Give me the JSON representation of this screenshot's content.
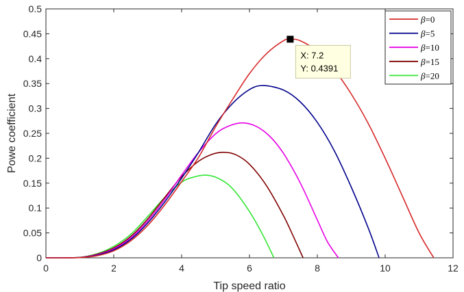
{
  "chart_data": {
    "type": "line",
    "xlabel": "Tip speed ratio",
    "ylabel": "Powe coefficient",
    "xlim": [
      0,
      12
    ],
    "ylim": [
      0,
      0.5
    ],
    "xticks": [
      0,
      2,
      4,
      6,
      8,
      10,
      12
    ],
    "yticks": [
      0,
      0.05,
      0.1,
      0.15,
      0.2,
      0.25,
      0.3,
      0.35,
      0.4,
      0.45,
      0.5
    ],
    "xtick_labels": [
      "0",
      "2",
      "4",
      "6",
      "8",
      "10",
      "12"
    ],
    "ytick_labels": [
      "0",
      "0.05",
      "0.1",
      "0.15",
      "0.2",
      "0.25",
      "0.3",
      "0.35",
      "0.4",
      "0.45",
      "0.5"
    ],
    "grid": false,
    "legend_position": "top-right",
    "series": [
      {
        "name": "=0",
        "beta": 0,
        "color": "#d62728",
        "x": [
          0,
          0.5,
          1,
          1.5,
          2,
          2.5,
          3,
          3.5,
          4,
          4.5,
          5,
          5.5,
          6,
          6.5,
          7,
          7.2,
          7.5,
          8,
          8.5,
          9,
          9.5,
          10,
          10.5,
          11,
          11.43
        ],
        "y": [
          0,
          0,
          0.0005,
          0.004,
          0.014,
          0.034,
          0.065,
          0.106,
          0.153,
          0.202,
          0.263,
          0.318,
          0.37,
          0.41,
          0.436,
          0.4391,
          0.436,
          0.415,
          0.378,
          0.329,
          0.27,
          0.2,
          0.125,
          0.05,
          0
        ]
      },
      {
        "name": "=5",
        "beta": 5,
        "color": "#00008b",
        "x": [
          0,
          0.5,
          1,
          1.5,
          2,
          2.5,
          3,
          3.5,
          4,
          4.5,
          5,
          5.5,
          6,
          6.4,
          7,
          7.5,
          8,
          8.5,
          9,
          9.5,
          9.82
        ],
        "y": [
          0,
          0,
          0.0006,
          0.005,
          0.016,
          0.037,
          0.07,
          0.112,
          0.16,
          0.212,
          0.268,
          0.31,
          0.338,
          0.346,
          0.337,
          0.313,
          0.272,
          0.215,
          0.142,
          0.06,
          0
        ]
      },
      {
        "name": "=10",
        "beta": 10,
        "color": "#e600e6",
        "x": [
          0,
          0.5,
          1,
          1.5,
          2,
          2.5,
          3,
          3.5,
          4,
          4.5,
          5,
          5.4,
          5.8,
          6.2,
          6.6,
          7,
          7.5,
          8,
          8.3,
          8.62
        ],
        "y": [
          0,
          0,
          0.0007,
          0.006,
          0.018,
          0.04,
          0.074,
          0.117,
          0.166,
          0.212,
          0.249,
          0.265,
          0.271,
          0.264,
          0.244,
          0.21,
          0.15,
          0.076,
          0.032,
          0
        ]
      },
      {
        "name": "=15",
        "beta": 15,
        "color": "#800000",
        "x": [
          0,
          0.5,
          1,
          1.5,
          2,
          2.5,
          3,
          3.5,
          4,
          4.5,
          4.9,
          5.25,
          5.6,
          6,
          6.5,
          7,
          7.3,
          7.58
        ],
        "y": [
          0,
          0,
          0.0008,
          0.007,
          0.02,
          0.043,
          0.078,
          0.121,
          0.163,
          0.194,
          0.208,
          0.212,
          0.207,
          0.188,
          0.145,
          0.085,
          0.042,
          0
        ]
      },
      {
        "name": "=20",
        "beta": 20,
        "color": "#33e633",
        "x": [
          0,
          0.5,
          1,
          1.5,
          2,
          2.5,
          3,
          3.5,
          4,
          4.4,
          4.75,
          5.1,
          5.5,
          6,
          6.4,
          6.72
        ],
        "y": [
          0,
          0,
          0.001,
          0.008,
          0.023,
          0.047,
          0.083,
          0.121,
          0.152,
          0.163,
          0.166,
          0.159,
          0.139,
          0.093,
          0.045,
          0
        ]
      }
    ],
    "annotation": {
      "x": 7.2,
      "y": 0.4391,
      "x_text": "X: 7.2",
      "y_text": "Y: 0.4391"
    },
    "legend_symbol": "β"
  }
}
